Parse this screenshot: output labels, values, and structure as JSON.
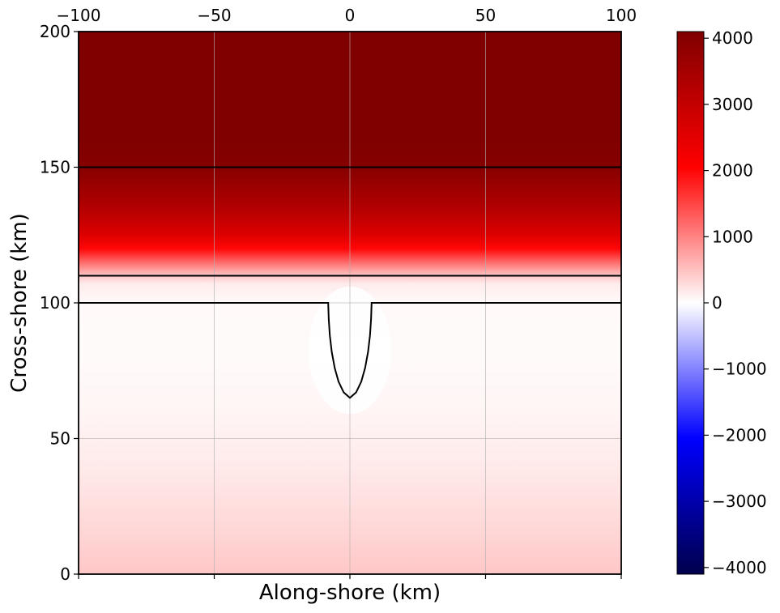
{
  "chart_data": {
    "type": "heatmap",
    "title": "",
    "xlabel": "Along-shore (km)",
    "ylabel": "Cross-shore (km)",
    "xlim": [
      -100,
      100
    ],
    "ylim": [
      0,
      200
    ],
    "x_ticks": [
      -100,
      -50,
      0,
      50,
      100
    ],
    "x_tick_labels_top": [
      "−100",
      "−50",
      "0",
      "50",
      "100"
    ],
    "y_ticks": [
      0,
      50,
      100,
      150,
      200
    ],
    "y_tick_labels": [
      "0",
      "50",
      "100",
      "150",
      "200"
    ],
    "grid": true,
    "colormap": "seismic",
    "colorbar": {
      "range": [
        -4100,
        4100
      ],
      "ticks": [
        4000,
        3000,
        2000,
        1000,
        0,
        -1000,
        -2000,
        -3000,
        -4000
      ],
      "tick_labels": [
        "4000",
        "3000",
        "2000",
        "1000",
        "0",
        "−1000",
        "−2000",
        "−3000",
        "−4000"
      ],
      "stops": [
        {
          "value": -4100,
          "color": "#00004c"
        },
        {
          "value": -2050,
          "color": "#0000ff"
        },
        {
          "value": 0,
          "color": "#ffffff"
        },
        {
          "value": 2050,
          "color": "#ff0000"
        },
        {
          "value": 4100,
          "color": "#800000"
        }
      ]
    },
    "depth_profile_vs_cross_shore": [
      {
        "y": 0,
        "value": 450
      },
      {
        "y": 20,
        "value": 300
      },
      {
        "y": 40,
        "value": 170
      },
      {
        "y": 60,
        "value": 80
      },
      {
        "y": 80,
        "value": 40
      },
      {
        "y": 100,
        "value": 50
      },
      {
        "y": 107,
        "value": 150
      },
      {
        "y": 110,
        "value": 450
      },
      {
        "y": 115,
        "value": 1200
      },
      {
        "y": 120,
        "value": 2000
      },
      {
        "y": 125,
        "value": 2600
      },
      {
        "y": 135,
        "value": 3300
      },
      {
        "y": 150,
        "value": 4000
      },
      {
        "y": 160,
        "value": 4100
      },
      {
        "y": 200,
        "value": 4100
      }
    ],
    "contours": [
      {
        "name": "line-150",
        "points": [
          [
            -100,
            150
          ],
          [
            100,
            150
          ]
        ]
      },
      {
        "name": "line-110",
        "points": [
          [
            -100,
            110
          ],
          [
            100,
            110
          ]
        ]
      },
      {
        "name": "coastline-with-canyon",
        "points": [
          [
            -100,
            100
          ],
          [
            -8,
            100
          ],
          [
            -7.8,
            94
          ],
          [
            -7.4,
            88
          ],
          [
            -6.7,
            82
          ],
          [
            -5.6,
            76
          ],
          [
            -4.2,
            71
          ],
          [
            -2.3,
            67
          ],
          [
            0,
            65
          ],
          [
            2.3,
            67
          ],
          [
            4.2,
            71
          ],
          [
            5.6,
            76
          ],
          [
            6.7,
            82
          ],
          [
            7.4,
            88
          ],
          [
            7.8,
            94
          ],
          [
            8,
            100
          ],
          [
            100,
            100
          ]
        ]
      }
    ],
    "canyon": {
      "x_range": [
        -8,
        8
      ],
      "y_min": 65,
      "y_top": 100
    }
  }
}
